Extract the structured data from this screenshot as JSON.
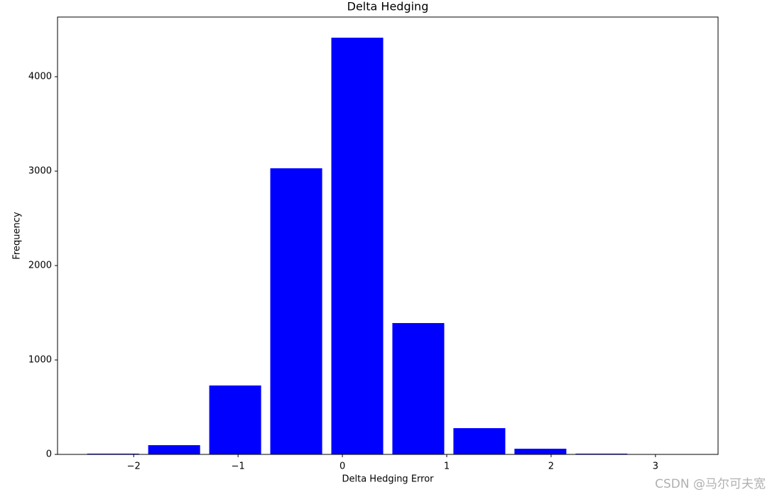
{
  "chart_data": {
    "type": "histogram",
    "title": "Delta Hedging",
    "x_label": "Delta Hedging Error",
    "y_label": "Frequency",
    "bins": [
      -2.49,
      -1.905,
      -1.32,
      -0.735,
      -0.15,
      0.435,
      1.02,
      1.605,
      2.19,
      2.775,
      3.36
    ],
    "values": [
      8,
      98,
      730,
      3030,
      4413,
      1391,
      278,
      60,
      8,
      1
    ],
    "color": "#0000ff",
    "rwidth": 0.85,
    "xlim": [
      -2.73,
      3.6
    ],
    "ylim": [
      0,
      4632
    ],
    "xticks": [
      {
        "value": -2,
        "label": "−2"
      },
      {
        "value": -1,
        "label": "−1"
      },
      0,
      1,
      2,
      3
    ],
    "yticks": [
      0,
      1000,
      2000,
      3000,
      4000
    ],
    "watermark": "CSDN @马尔可夫宽"
  }
}
